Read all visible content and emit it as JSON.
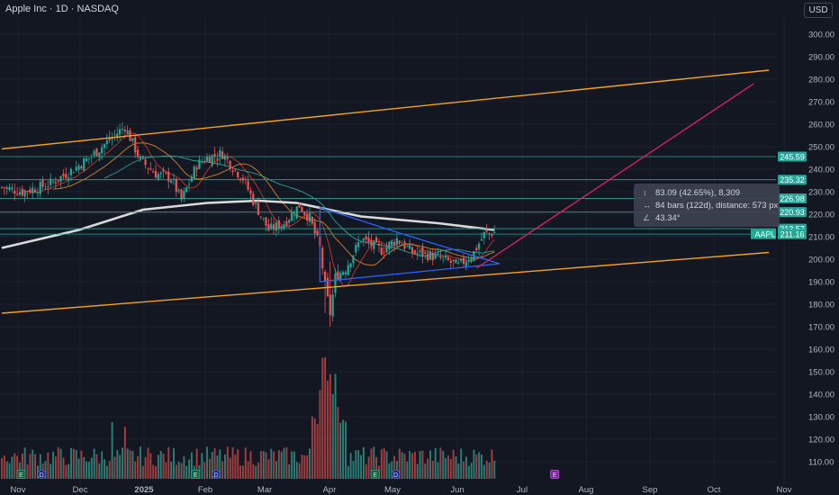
{
  "header": {
    "title": "Apple Inc · 1D · NASDAQ",
    "currency": "USD"
  },
  "measure_box": {
    "line1": "83.09 (42.65%), 8,309",
    "line2": "84 bars (122d), distance: 573 px",
    "line3": "43.34°",
    "icon1": "height-measure-icon",
    "icon2": "width-measure-icon",
    "icon3": "angle-icon"
  },
  "colors": {
    "background": "#131722",
    "up": "#26a69a",
    "down": "#ef5350",
    "channel": "#f7a21b",
    "wedge": "#2962ff",
    "projection": "#e91e63",
    "ma_long": "#d9d9d9",
    "level": "#26a69a",
    "grid": "#1e222d"
  },
  "chart_data": {
    "type": "candlestick",
    "symbol": "AAPL",
    "y_axis": {
      "ticks": [
        110,
        120,
        130,
        140,
        150,
        160,
        170,
        180,
        190,
        200,
        210,
        220,
        230,
        240,
        250,
        260,
        270,
        280,
        290,
        300
      ],
      "price_range": [
        166,
        305
      ]
    },
    "x_axis": {
      "labels": [
        "Nov",
        "Dec",
        "2025",
        "Feb",
        "Mar",
        "Apr",
        "May",
        "Jun",
        "Jul",
        "Aug",
        "Sep",
        "Oct",
        "Nov"
      ],
      "bold_label": "2025"
    },
    "horizontal_levels": [
      245.59,
      235.32,
      226.98,
      220.93,
      213.57,
      211.16
    ],
    "last_price": {
      "symbol": "AAPL",
      "value": 211.16
    },
    "anchors": [
      [
        0,
        232
      ],
      [
        8,
        230
      ],
      [
        18,
        233
      ],
      [
        28,
        240
      ],
      [
        34,
        245
      ],
      [
        42,
        253
      ],
      [
        48,
        259
      ],
      [
        54,
        244
      ],
      [
        60,
        238
      ],
      [
        66,
        236
      ],
      [
        70,
        226
      ],
      [
        76,
        242
      ],
      [
        80,
        245
      ],
      [
        86,
        247
      ],
      [
        90,
        241
      ],
      [
        94,
        236
      ],
      [
        98,
        226
      ],
      [
        104,
        213
      ],
      [
        110,
        216
      ],
      [
        116,
        224
      ],
      [
        120,
        218
      ],
      [
        124,
        205
      ],
      [
        126,
        188
      ],
      [
        128,
        176
      ],
      [
        130,
        192
      ],
      [
        134,
        196
      ],
      [
        140,
        209
      ],
      [
        148,
        204
      ],
      [
        154,
        209
      ],
      [
        160,
        203
      ],
      [
        166,
        202
      ],
      [
        172,
        200
      ],
      [
        178,
        197
      ],
      [
        184,
        203
      ],
      [
        188,
        211
      ],
      [
        192,
        212
      ]
    ],
    "moving_average_long": [
      [
        0,
        205
      ],
      [
        30,
        213
      ],
      [
        55,
        222
      ],
      [
        80,
        225
      ],
      [
        100,
        226
      ],
      [
        115,
        225
      ],
      [
        140,
        219
      ],
      [
        170,
        216
      ],
      [
        192,
        213
      ]
    ],
    "channel_upper": {
      "start": [
        0,
        249
      ],
      "end": [
        285,
        283
      ]
    },
    "channel_lower": {
      "start": [
        0,
        176
      ],
      "end": [
        285,
        202
      ]
    },
    "wedge": [
      [
        124,
        223
      ],
      [
        124,
        190
      ],
      [
        194,
        198
      ],
      [
        154,
        212
      ]
    ],
    "projection_line": {
      "start": [
        185,
        196
      ],
      "end": [
        272,
        278
      ]
    },
    "event_markers": [
      {
        "label": "E",
        "bar": 4
      },
      {
        "label": "D",
        "bar": 12
      },
      {
        "label": "E",
        "bar": 72
      },
      {
        "label": "D",
        "bar": 80
      },
      {
        "label": "E",
        "bar": 142
      },
      {
        "label": "D",
        "bar": 150
      },
      {
        "label": "E",
        "bar": 212
      }
    ]
  }
}
